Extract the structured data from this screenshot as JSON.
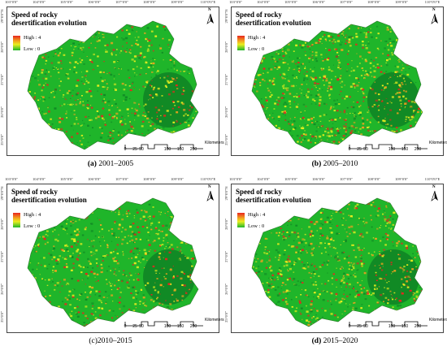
{
  "map_figure": {
    "panels": [
      {
        "caption_letter": "(a)",
        "caption_years": " 2001–2005"
      },
      {
        "caption_letter": "(b)",
        "caption_years": " 2005–2010"
      },
      {
        "caption_letter": "",
        "caption_years": "(c)2010–2015"
      },
      {
        "caption_letter": "(d)",
        "caption_years": " 2015–2020"
      }
    ],
    "legend": {
      "title_line1": "Speed of rocky",
      "title_line2": "desertification evolution",
      "high_label": "High : 4",
      "low_label": "Low : 0"
    },
    "longitude_ticks": [
      "103°0'0\"",
      "104°0'0\"",
      "105°0'0\"",
      "106°0'0\"",
      "107°0'0\"",
      "108°0'0\"",
      "109°0'0\"",
      "110°0'0\"E"
    ],
    "latitude_ticks": [
      "29°0'0\"N",
      "28°0'0\"",
      "27°0'0\"",
      "26°0'0\"",
      "25°0'0\""
    ],
    "north_arrow_label": "N",
    "scale_bar": {
      "unit": "Kilometers",
      "numbers": [
        "0",
        "25",
        "50",
        "100",
        "150",
        "200"
      ]
    },
    "colors": {
      "high": "#e8251f",
      "mid": "#f2a11f",
      "low_mid": "#e8ee1f",
      "low": "#1fb52a",
      "dark_green": "#118a25"
    }
  }
}
